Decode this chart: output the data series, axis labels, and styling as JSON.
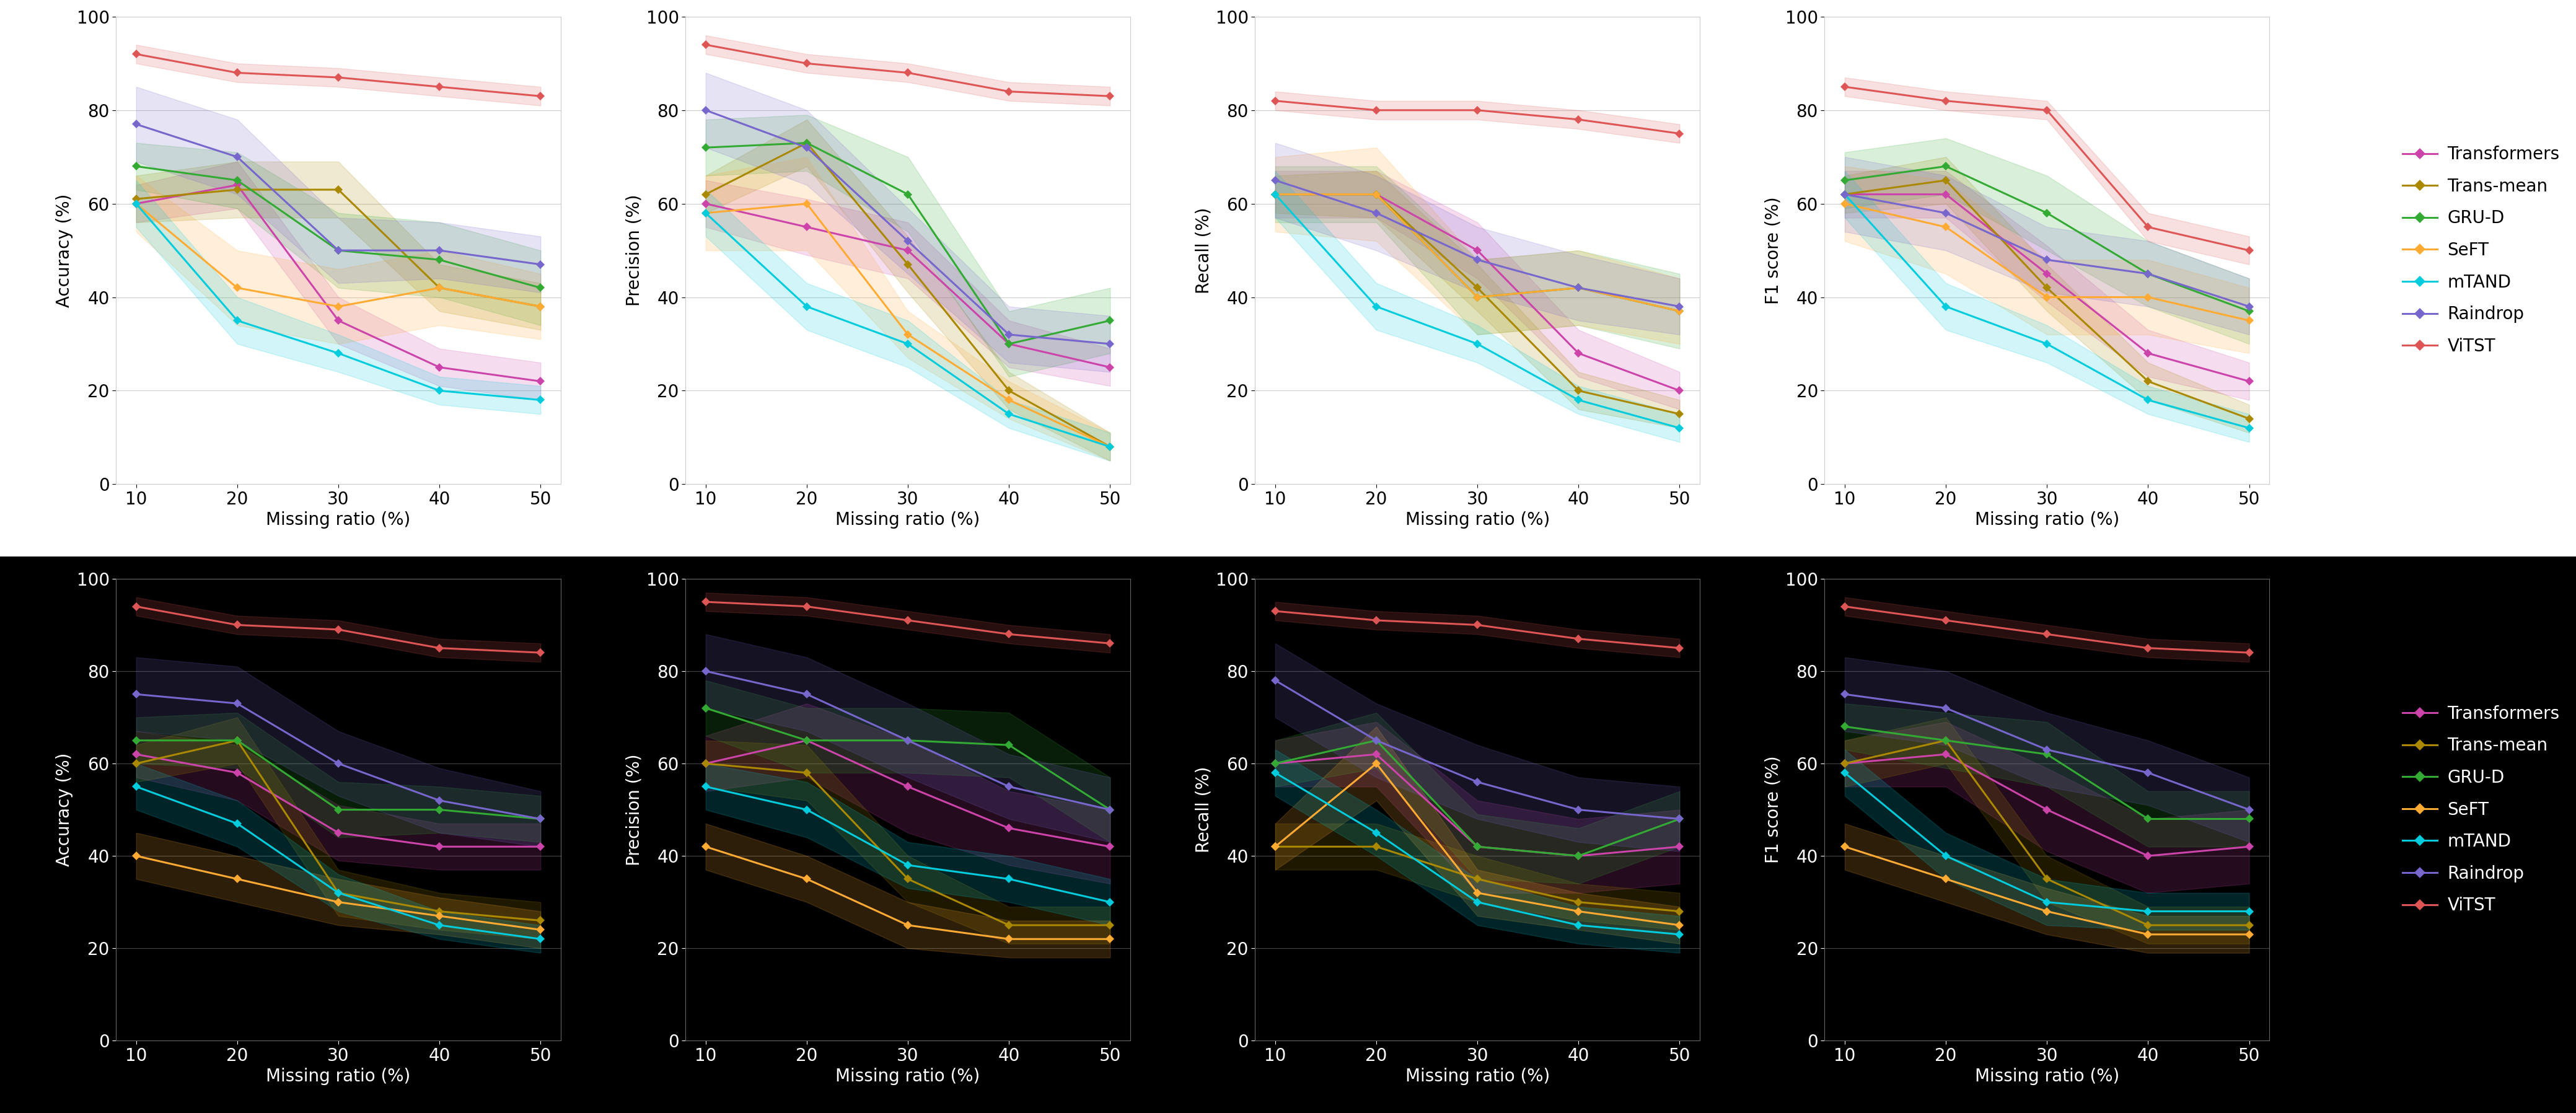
{
  "x": [
    10,
    20,
    30,
    40,
    50
  ],
  "methods": [
    "Transformers",
    "Trans-mean",
    "GRU-D",
    "SeFT",
    "mTAND",
    "Raindrop",
    "ViTST"
  ],
  "colors": {
    "Transformers": "#cc44aa",
    "Trans-mean": "#aa8800",
    "GRU-D": "#33aa33",
    "SeFT": "#ffaa33",
    "mTAND": "#00ccdd",
    "Raindrop": "#7766cc",
    "ViTST": "#dd5555"
  },
  "top": {
    "Accuracy": {
      "Transformers": {
        "mean": [
          60,
          64,
          35,
          25,
          22
        ],
        "std": [
          4,
          5,
          5,
          4,
          4
        ]
      },
      "Trans-mean": {
        "mean": [
          61,
          63,
          63,
          42,
          38
        ],
        "std": [
          5,
          6,
          6,
          5,
          5
        ]
      },
      "GRU-D": {
        "mean": [
          68,
          65,
          50,
          48,
          42
        ],
        "std": [
          5,
          6,
          8,
          8,
          8
        ]
      },
      "SeFT": {
        "mean": [
          60,
          42,
          38,
          42,
          38
        ],
        "std": [
          6,
          8,
          8,
          8,
          7
        ]
      },
      "mTAND": {
        "mean": [
          60,
          35,
          28,
          20,
          18
        ],
        "std": [
          5,
          5,
          4,
          3,
          3
        ]
      },
      "Raindrop": {
        "mean": [
          77,
          70,
          50,
          50,
          47
        ],
        "std": [
          8,
          8,
          7,
          6,
          6
        ]
      },
      "ViTST": {
        "mean": [
          92,
          88,
          87,
          85,
          83
        ],
        "std": [
          2,
          2,
          2,
          2,
          2
        ]
      }
    },
    "Precision": {
      "Transformers": {
        "mean": [
          60,
          55,
          50,
          30,
          25
        ],
        "std": [
          5,
          6,
          6,
          5,
          4
        ]
      },
      "Trans-mean": {
        "mean": [
          62,
          73,
          47,
          20,
          8
        ],
        "std": [
          4,
          5,
          6,
          4,
          3
        ]
      },
      "GRU-D": {
        "mean": [
          72,
          73,
          62,
          30,
          35
        ],
        "std": [
          6,
          6,
          8,
          7,
          7
        ]
      },
      "SeFT": {
        "mean": [
          58,
          60,
          32,
          18,
          8
        ],
        "std": [
          8,
          10,
          5,
          4,
          3
        ]
      },
      "mTAND": {
        "mean": [
          58,
          38,
          30,
          15,
          8
        ],
        "std": [
          5,
          5,
          5,
          3,
          3
        ]
      },
      "Raindrop": {
        "mean": [
          80,
          72,
          52,
          32,
          30
        ],
        "std": [
          8,
          8,
          7,
          6,
          6
        ]
      },
      "ViTST": {
        "mean": [
          94,
          90,
          88,
          84,
          83
        ],
        "std": [
          2,
          2,
          2,
          2,
          2
        ]
      }
    },
    "Recall": {
      "Transformers": {
        "mean": [
          62,
          62,
          50,
          28,
          20
        ],
        "std": [
          5,
          5,
          6,
          5,
          4
        ]
      },
      "Trans-mean": {
        "mean": [
          62,
          62,
          42,
          20,
          15
        ],
        "std": [
          4,
          5,
          5,
          4,
          3
        ]
      },
      "GRU-D": {
        "mean": [
          62,
          62,
          40,
          42,
          37
        ],
        "std": [
          6,
          6,
          8,
          8,
          8
        ]
      },
      "SeFT": {
        "mean": [
          62,
          62,
          40,
          42,
          37
        ],
        "std": [
          8,
          10,
          8,
          8,
          7
        ]
      },
      "mTAND": {
        "mean": [
          62,
          38,
          30,
          18,
          12
        ],
        "std": [
          5,
          5,
          4,
          3,
          3
        ]
      },
      "Raindrop": {
        "mean": [
          65,
          58,
          48,
          42,
          38
        ],
        "std": [
          8,
          8,
          7,
          7,
          6
        ]
      },
      "ViTST": {
        "mean": [
          82,
          80,
          80,
          78,
          75
        ],
        "std": [
          2,
          2,
          2,
          2,
          2
        ]
      }
    },
    "F1 score": {
      "Transformers": {
        "mean": [
          62,
          62,
          45,
          28,
          22
        ],
        "std": [
          5,
          5,
          6,
          5,
          4
        ]
      },
      "Trans-mean": {
        "mean": [
          62,
          65,
          42,
          22,
          14
        ],
        "std": [
          4,
          5,
          5,
          4,
          3
        ]
      },
      "GRU-D": {
        "mean": [
          65,
          68,
          58,
          45,
          37
        ],
        "std": [
          6,
          6,
          8,
          7,
          7
        ]
      },
      "SeFT": {
        "mean": [
          60,
          55,
          40,
          40,
          35
        ],
        "std": [
          8,
          10,
          8,
          8,
          7
        ]
      },
      "mTAND": {
        "mean": [
          62,
          38,
          30,
          18,
          12
        ],
        "std": [
          5,
          5,
          4,
          3,
          3
        ]
      },
      "Raindrop": {
        "mean": [
          62,
          58,
          48,
          45,
          38
        ],
        "std": [
          8,
          8,
          7,
          7,
          6
        ]
      },
      "ViTST": {
        "mean": [
          85,
          82,
          80,
          55,
          50
        ],
        "std": [
          2,
          2,
          2,
          3,
          3
        ]
      }
    }
  },
  "bottom": {
    "Accuracy": {
      "Transformers": {
        "mean": [
          62,
          58,
          45,
          42,
          42
        ],
        "std": [
          5,
          6,
          6,
          5,
          5
        ]
      },
      "Trans-mean": {
        "mean": [
          60,
          65,
          32,
          28,
          26
        ],
        "std": [
          4,
          5,
          5,
          4,
          4
        ]
      },
      "GRU-D": {
        "mean": [
          65,
          65,
          50,
          50,
          48
        ],
        "std": [
          5,
          6,
          6,
          5,
          5
        ]
      },
      "SeFT": {
        "mean": [
          40,
          35,
          30,
          27,
          24
        ],
        "std": [
          5,
          5,
          5,
          4,
          4
        ]
      },
      "mTAND": {
        "mean": [
          55,
          47,
          32,
          25,
          22
        ],
        "std": [
          5,
          5,
          4,
          3,
          3
        ]
      },
      "Raindrop": {
        "mean": [
          75,
          73,
          60,
          52,
          48
        ],
        "std": [
          8,
          8,
          7,
          7,
          6
        ]
      },
      "ViTST": {
        "mean": [
          94,
          90,
          89,
          85,
          84
        ],
        "std": [
          2,
          2,
          2,
          2,
          2
        ]
      }
    },
    "Precision": {
      "Transformers": {
        "mean": [
          60,
          65,
          55,
          46,
          42
        ],
        "std": [
          6,
          8,
          10,
          8,
          8
        ]
      },
      "Trans-mean": {
        "mean": [
          60,
          58,
          35,
          25,
          25
        ],
        "std": [
          5,
          6,
          5,
          4,
          4
        ]
      },
      "GRU-D": {
        "mean": [
          72,
          65,
          65,
          64,
          50
        ],
        "std": [
          6,
          7,
          7,
          7,
          7
        ]
      },
      "SeFT": {
        "mean": [
          42,
          35,
          25,
          22,
          22
        ],
        "std": [
          5,
          5,
          5,
          4,
          4
        ]
      },
      "mTAND": {
        "mean": [
          55,
          50,
          38,
          35,
          30
        ],
        "std": [
          5,
          6,
          5,
          5,
          5
        ]
      },
      "Raindrop": {
        "mean": [
          80,
          75,
          65,
          55,
          50
        ],
        "std": [
          8,
          8,
          8,
          7,
          7
        ]
      },
      "ViTST": {
        "mean": [
          95,
          94,
          91,
          88,
          86
        ],
        "std": [
          2,
          2,
          2,
          2,
          2
        ]
      }
    },
    "Recall": {
      "Transformers": {
        "mean": [
          60,
          62,
          42,
          40,
          42
        ],
        "std": [
          5,
          7,
          10,
          8,
          8
        ]
      },
      "Trans-mean": {
        "mean": [
          42,
          42,
          35,
          30,
          28
        ],
        "std": [
          5,
          5,
          5,
          4,
          4
        ]
      },
      "GRU-D": {
        "mean": [
          60,
          65,
          42,
          40,
          48
        ],
        "std": [
          5,
          6,
          7,
          6,
          6
        ]
      },
      "SeFT": {
        "mean": [
          42,
          60,
          32,
          28,
          25
        ],
        "std": [
          5,
          8,
          5,
          4,
          4
        ]
      },
      "mTAND": {
        "mean": [
          58,
          45,
          30,
          25,
          23
        ],
        "std": [
          5,
          5,
          5,
          4,
          4
        ]
      },
      "Raindrop": {
        "mean": [
          78,
          65,
          56,
          50,
          48
        ],
        "std": [
          8,
          8,
          8,
          7,
          7
        ]
      },
      "ViTST": {
        "mean": [
          93,
          91,
          90,
          87,
          85
        ],
        "std": [
          2,
          2,
          2,
          2,
          2
        ]
      }
    },
    "F1 score": {
      "Transformers": {
        "mean": [
          60,
          62,
          50,
          40,
          42
        ],
        "std": [
          5,
          7,
          9,
          8,
          8
        ]
      },
      "Trans-mean": {
        "mean": [
          60,
          65,
          35,
          25,
          25
        ],
        "std": [
          5,
          5,
          5,
          4,
          4
        ]
      },
      "GRU-D": {
        "mean": [
          68,
          65,
          62,
          48,
          48
        ],
        "std": [
          5,
          6,
          7,
          6,
          6
        ]
      },
      "SeFT": {
        "mean": [
          42,
          35,
          28,
          23,
          23
        ],
        "std": [
          5,
          5,
          5,
          4,
          4
        ]
      },
      "mTAND": {
        "mean": [
          58,
          40,
          30,
          28,
          28
        ],
        "std": [
          5,
          5,
          5,
          4,
          4
        ]
      },
      "Raindrop": {
        "mean": [
          75,
          72,
          63,
          58,
          50
        ],
        "std": [
          8,
          8,
          8,
          7,
          7
        ]
      },
      "ViTST": {
        "mean": [
          94,
          91,
          88,
          85,
          84
        ],
        "std": [
          2,
          2,
          2,
          2,
          2
        ]
      }
    }
  },
  "metrics": [
    "Accuracy",
    "Precision",
    "Recall",
    "F1 score"
  ],
  "ylabels": [
    "Accuracy (%)",
    "Precision (%)",
    "Recall (%)",
    "F1 score (%)"
  ],
  "xlabel": "Missing ratio (%)"
}
